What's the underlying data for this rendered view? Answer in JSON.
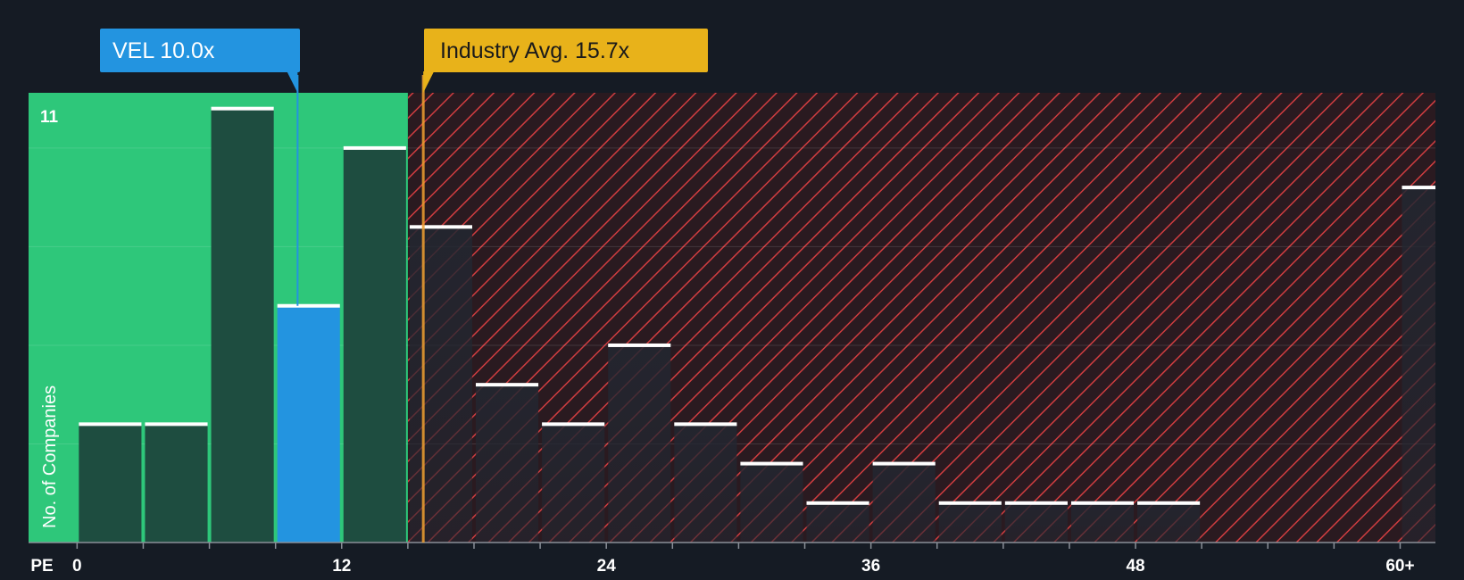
{
  "chart_data": {
    "type": "bar",
    "title": "",
    "xlabel": "PE",
    "ylabel": "No. of Companies",
    "x_ticks": [
      "0",
      "12",
      "24",
      "36",
      "48",
      "60+"
    ],
    "x_tick_values": [
      0,
      12,
      24,
      36,
      48,
      60
    ],
    "bin_width": 3,
    "xlim": [
      -2.2,
      61.6
    ],
    "ylim": [
      0,
      11.4
    ],
    "y_max_label": "11",
    "grid": true,
    "bins": [
      {
        "start": 0,
        "value": 3
      },
      {
        "start": 3,
        "value": 3
      },
      {
        "start": 6,
        "value": 11
      },
      {
        "start": 9,
        "value": 6,
        "highlight": true
      },
      {
        "start": 12,
        "value": 10
      },
      {
        "start": 15,
        "value": 8
      },
      {
        "start": 18,
        "value": 4
      },
      {
        "start": 21,
        "value": 3
      },
      {
        "start": 24,
        "value": 5
      },
      {
        "start": 27,
        "value": 3
      },
      {
        "start": 30,
        "value": 2
      },
      {
        "start": 33,
        "value": 1
      },
      {
        "start": 36,
        "value": 2
      },
      {
        "start": 39,
        "value": 1
      },
      {
        "start": 42,
        "value": 1
      },
      {
        "start": 45,
        "value": 1
      },
      {
        "start": 48,
        "value": 1
      },
      {
        "start": 51,
        "value": 0
      },
      {
        "start": 54,
        "value": 0
      },
      {
        "start": 57,
        "value": 0
      },
      {
        "start": 60,
        "value": 9
      }
    ],
    "company": {
      "label": "VEL 10.0x",
      "value": 10.0
    },
    "industry": {
      "label": "Industry Avg. 15.7x",
      "value": 15.7
    },
    "fair_zone_end": 15
  },
  "colors": {
    "background": "#151b24",
    "fair_zone": "#2ec77a",
    "bar_in_zone": "#1e4d40",
    "bar_highlight": "#2394e0",
    "bar_outside": "#222731",
    "hatch_line": "#d03d40",
    "overvalued_bg": "#2a1a20",
    "cap": "#ffffff",
    "company_callout": "#2394e0",
    "industry_callout": "#e8b21a",
    "industry_line": "#f0a030"
  }
}
